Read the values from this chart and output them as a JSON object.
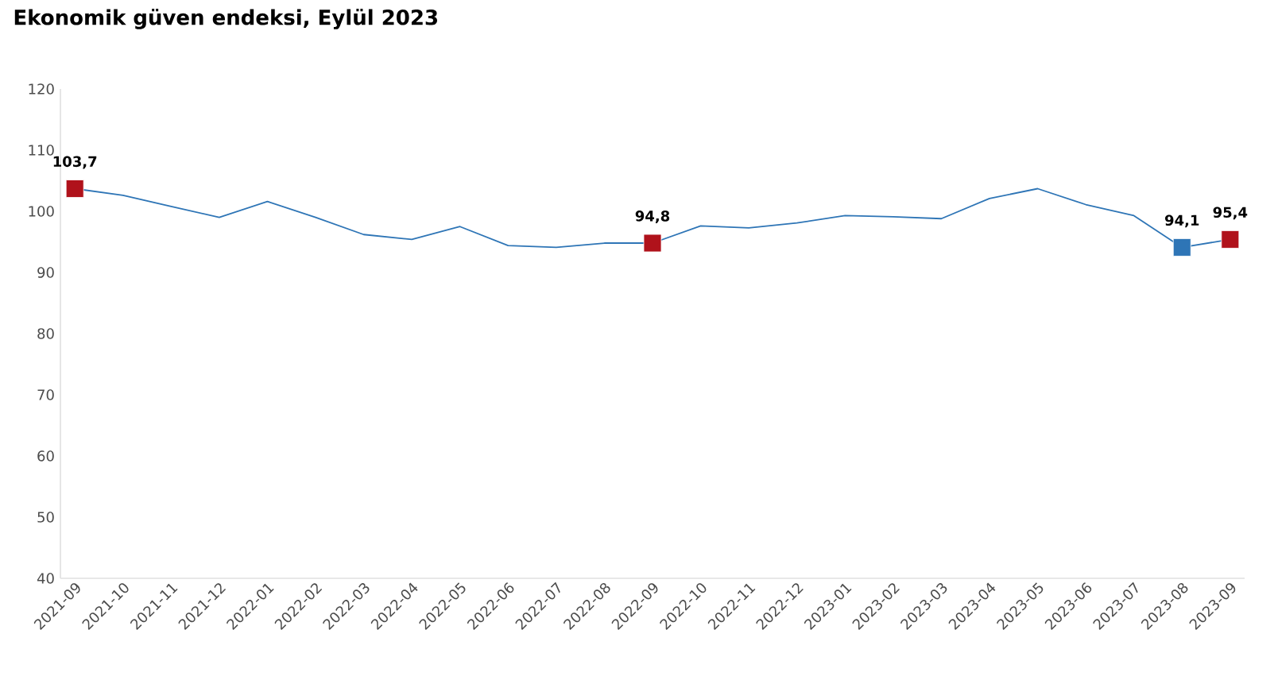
{
  "chart_data": {
    "type": "line",
    "title": "Ekonomik güven endeksi, Eylül 2023",
    "categories": [
      "2021-09",
      "2021-10",
      "2021-11",
      "2021-12",
      "2022-01",
      "2022-02",
      "2022-03",
      "2022-04",
      "2022-05",
      "2022-06",
      "2022-07",
      "2022-08",
      "2022-09",
      "2022-10",
      "2022-11",
      "2022-12",
      "2023-01",
      "2023-02",
      "2023-03",
      "2023-04",
      "2023-05",
      "2023-06",
      "2023-07",
      "2023-08",
      "2023-09"
    ],
    "series": [
      {
        "color": "#2e75b6",
        "marker": "none",
        "line_style": "solid",
        "values": [
          103.7,
          102.6,
          100.8,
          99.0,
          101.6,
          99.0,
          96.2,
          95.4,
          97.5,
          94.4,
          94.1,
          94.8,
          94.8,
          97.6,
          97.3,
          98.1,
          99.3,
          99.1,
          98.8,
          102.1,
          103.7,
          101.1,
          99.3,
          94.1,
          95.4
        ]
      },
      {
        "type": "scatter",
        "marker": "square",
        "values": [
          103.7,
          null,
          null,
          null,
          null,
          null,
          null,
          null,
          null,
          null,
          null,
          null,
          94.8,
          null,
          null,
          null,
          null,
          null,
          null,
          null,
          null,
          null,
          null,
          94.1,
          95.4
        ],
        "colors": [
          "#b0121b",
          null,
          null,
          null,
          null,
          null,
          null,
          null,
          null,
          null,
          null,
          null,
          "#b0121b",
          null,
          null,
          null,
          null,
          null,
          null,
          null,
          null,
          null,
          null,
          "#2e75b6",
          "#b0121b"
        ],
        "value_labels": [
          "103,7",
          null,
          null,
          null,
          null,
          null,
          null,
          null,
          null,
          null,
          null,
          null,
          "94,8",
          null,
          null,
          null,
          null,
          null,
          null,
          null,
          null,
          null,
          null,
          "94,1",
          "95,4"
        ]
      }
    ],
    "ylim": [
      40,
      120
    ],
    "yticks": [
      40,
      50,
      60,
      70,
      80,
      90,
      100,
      110,
      120
    ],
    "grid": false
  }
}
